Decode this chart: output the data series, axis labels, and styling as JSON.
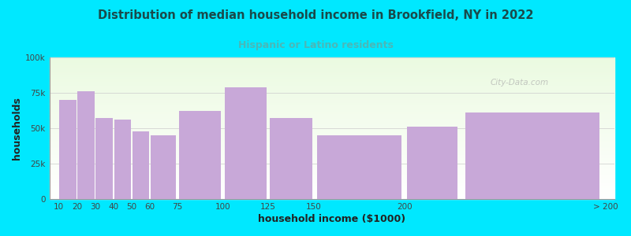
{
  "title": "Distribution of median household income in Brookfield, NY in 2022",
  "subtitle": "Hispanic or Latino residents",
  "xlabel": "household income ($1000)",
  "ylabel": "households",
  "bar_lefts": [
    10,
    20,
    30,
    40,
    50,
    60,
    75,
    100,
    125,
    150,
    200,
    230
  ],
  "bar_widths": [
    10,
    10,
    10,
    10,
    10,
    15,
    25,
    25,
    25,
    50,
    30,
    80
  ],
  "bar_values": [
    70000,
    76000,
    57000,
    56000,
    48000,
    45000,
    62000,
    79000,
    57000,
    45000,
    51000,
    61000
  ],
  "bar_color": "#c8a8d8",
  "bg_outer": "#00e8ff",
  "title_color": "#1a4a4a",
  "subtitle_color": "#4ab8b8",
  "watermark": "City-Data.com",
  "ylim": [
    0,
    100000
  ],
  "yticks": [
    0,
    25000,
    50000,
    75000,
    100000
  ],
  "ytick_labels": [
    "0",
    "25k",
    "50k",
    "75k",
    "100k"
  ],
  "xtick_positions": [
    10,
    20,
    30,
    40,
    50,
    60,
    75,
    100,
    125,
    150,
    200,
    310
  ],
  "xtick_labels": [
    "10",
    "20",
    "30",
    "40",
    "50",
    "60",
    "75",
    "100",
    "125",
    "150",
    "200",
    "> 200"
  ],
  "xlim": [
    5,
    315
  ]
}
